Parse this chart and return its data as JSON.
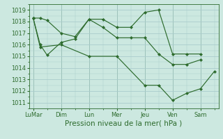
{
  "bg_color": "#cce8e0",
  "grid_color": "#aacccc",
  "line_color": "#2d6b2d",
  "xlabel": "Pression niveau de la mer( hPa )",
  "xlabel_fontsize": 7.5,
  "tick_fontsize": 6,
  "ylim": [
    1010.5,
    1019.5
  ],
  "yticks": [
    1011,
    1012,
    1013,
    1014,
    1015,
    1016,
    1017,
    1018,
    1019
  ],
  "xtick_labels": [
    "LuMar",
    "Dim",
    "Lun",
    "Mer",
    "Jeu",
    "Ven",
    "Sam"
  ],
  "xtick_positions": [
    0,
    2,
    4,
    6,
    8,
    10,
    12
  ],
  "xlim": [
    -0.3,
    13.3
  ],
  "series1_x": [
    0,
    0.5,
    1,
    2,
    3,
    4,
    5,
    6,
    7,
    8,
    9,
    10,
    11,
    12
  ],
  "series1_y": [
    1018.3,
    1018.3,
    1018.1,
    1017.0,
    1016.7,
    1018.2,
    1018.2,
    1017.5,
    1017.5,
    1018.8,
    1019.0,
    1015.2,
    1015.2,
    1015.2
  ],
  "series2_x": [
    0,
    0.5,
    1,
    2,
    3,
    4,
    5,
    6,
    7,
    8,
    9,
    10,
    11,
    12
  ],
  "series2_y": [
    1018.3,
    1016.0,
    1015.1,
    1016.2,
    1016.5,
    1018.2,
    1017.5,
    1016.6,
    1016.6,
    1016.6,
    1015.2,
    1014.3,
    1014.3,
    1014.7
  ],
  "series3_x": [
    0,
    0.5,
    2,
    4,
    6,
    8,
    9,
    10,
    11,
    12,
    13
  ],
  "series3_y": [
    1018.3,
    1015.8,
    1016.0,
    1015.0,
    1015.0,
    1012.5,
    1012.5,
    1011.2,
    1011.8,
    1012.2,
    1013.7
  ]
}
